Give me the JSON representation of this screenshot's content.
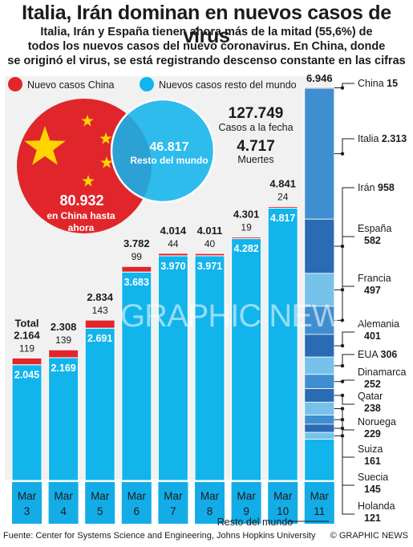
{
  "header": {
    "title": "Italia, Irán dominan en nuevos casos de virus",
    "subtitle_lines": [
      "Italia, Irán y España tienen ahora más de la mitad (55,6%) de",
      "todos los nuevos casos del nuevo coronavirus. En China, donde",
      "se originó el virus, se está registrando descenso constante en las cifras"
    ]
  },
  "legend": {
    "china": "Nuevo casos China",
    "rest": "Nuevos casos resto del mundo"
  },
  "totals_panel": {
    "cases_value": "127.749",
    "cases_label": "Casos a la fecha",
    "deaths_value": "4.717",
    "deaths_label": "Muertes"
  },
  "venn": {
    "rest_value": "46.817",
    "rest_label": "Resto del mundo",
    "china_value": "80.932",
    "china_label_lines": [
      "en China hasta",
      "ahora"
    ]
  },
  "colors": {
    "china": "#e0262b",
    "rest": "#12b4ec",
    "axis_cells": "#13ace6",
    "stack_shades": [
      "#76c2eb",
      "#3f8fd0",
      "#2a6bb4"
    ],
    "text": "#1b1b1b"
  },
  "chart_data": {
    "type": "bar",
    "categories": [
      "Mar\n3",
      "Mar\n4",
      "Mar\n5",
      "Mar\n6",
      "Mar\n7",
      "Mar\n8",
      "Mar\n9",
      "Mar\n10",
      "Mar\n11"
    ],
    "totals": [
      "Total\n2.164",
      "2.308",
      "2.834",
      "3.782",
      "4.014",
      "4.011",
      "4.301",
      "4.841",
      "6.946"
    ],
    "series": [
      {
        "name": "Nuevos casos resto del mundo",
        "values": [
          2045,
          2169,
          2691,
          3683,
          3970,
          3971,
          4282,
          4817,
          null
        ],
        "labels": [
          "2.045",
          "2.169",
          "2.691",
          "3.683",
          "3.970",
          "3.971",
          "4.282",
          "4.817",
          ""
        ]
      },
      {
        "name": "Nuevo casos China",
        "values": [
          119,
          139,
          143,
          99,
          44,
          40,
          19,
          24,
          15
        ],
        "labels": [
          "119",
          "139",
          "143",
          "99",
          "44",
          "40",
          "19",
          "24",
          ""
        ]
      }
    ],
    "breakdown_mar11": [
      {
        "country": "China",
        "value": "15"
      },
      {
        "country": "Italia",
        "value": "2.313"
      },
      {
        "country": "Irán",
        "value": "958"
      },
      {
        "country": "España",
        "value": "582"
      },
      {
        "country": "Francia",
        "value": "497"
      },
      {
        "country": "Alemania",
        "value": "401"
      },
      {
        "country": "EUA",
        "value": "306"
      },
      {
        "country": "Dinamarca",
        "value": "252"
      },
      {
        "country": "Qatar",
        "value": "238"
      },
      {
        "country": "Noruega",
        "value": "229"
      },
      {
        "country": "Suiza",
        "value": "161"
      },
      {
        "country": "Suecia",
        "value": "145"
      },
      {
        "country": "Holanda",
        "value": "121"
      }
    ],
    "breakdown_others_label": "Resto del mundo",
    "ylim": [
      0,
      7000
    ]
  },
  "footer": {
    "source": "Fuente: Center for Systems Science and Engineering, Johns Hopkins University",
    "credit": "© GRAPHIC NEWS"
  },
  "watermark": "GRAPHIC NEWS"
}
